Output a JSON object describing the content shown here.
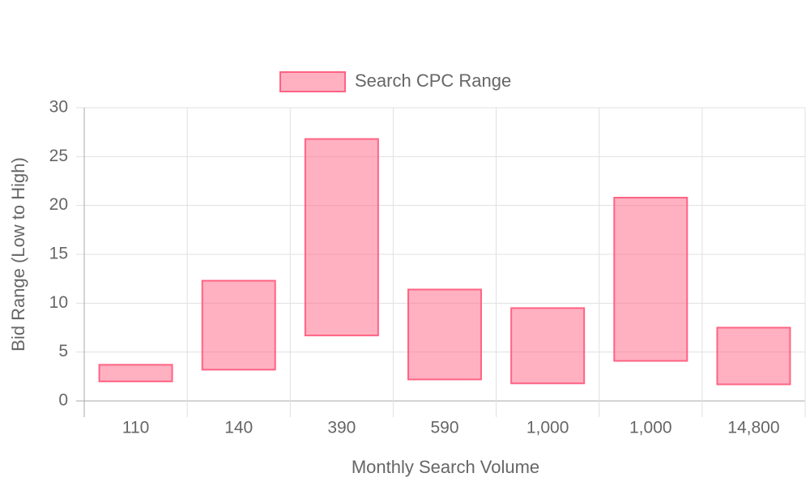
{
  "chart_data": {
    "type": "floating-bar",
    "xlabel": "Monthly Search Volume",
    "ylabel": "Bid Range (Low to High)",
    "categories": [
      "110",
      "140",
      "390",
      "590",
      "1,000",
      "1,000",
      "14,800"
    ],
    "series": [
      {
        "name": "Search CPC Range",
        "color": "#ff6384",
        "values": [
          [
            2.0,
            3.7
          ],
          [
            3.2,
            12.3
          ],
          [
            6.7,
            26.8
          ],
          [
            2.2,
            11.4
          ],
          [
            1.8,
            9.5
          ],
          [
            4.1,
            20.8
          ],
          [
            1.7,
            7.5
          ]
        ]
      }
    ],
    "ylim": [
      0,
      30
    ],
    "yticks": [
      0,
      5,
      10,
      15,
      20,
      25,
      30
    ],
    "grid": true,
    "legend": "top"
  }
}
